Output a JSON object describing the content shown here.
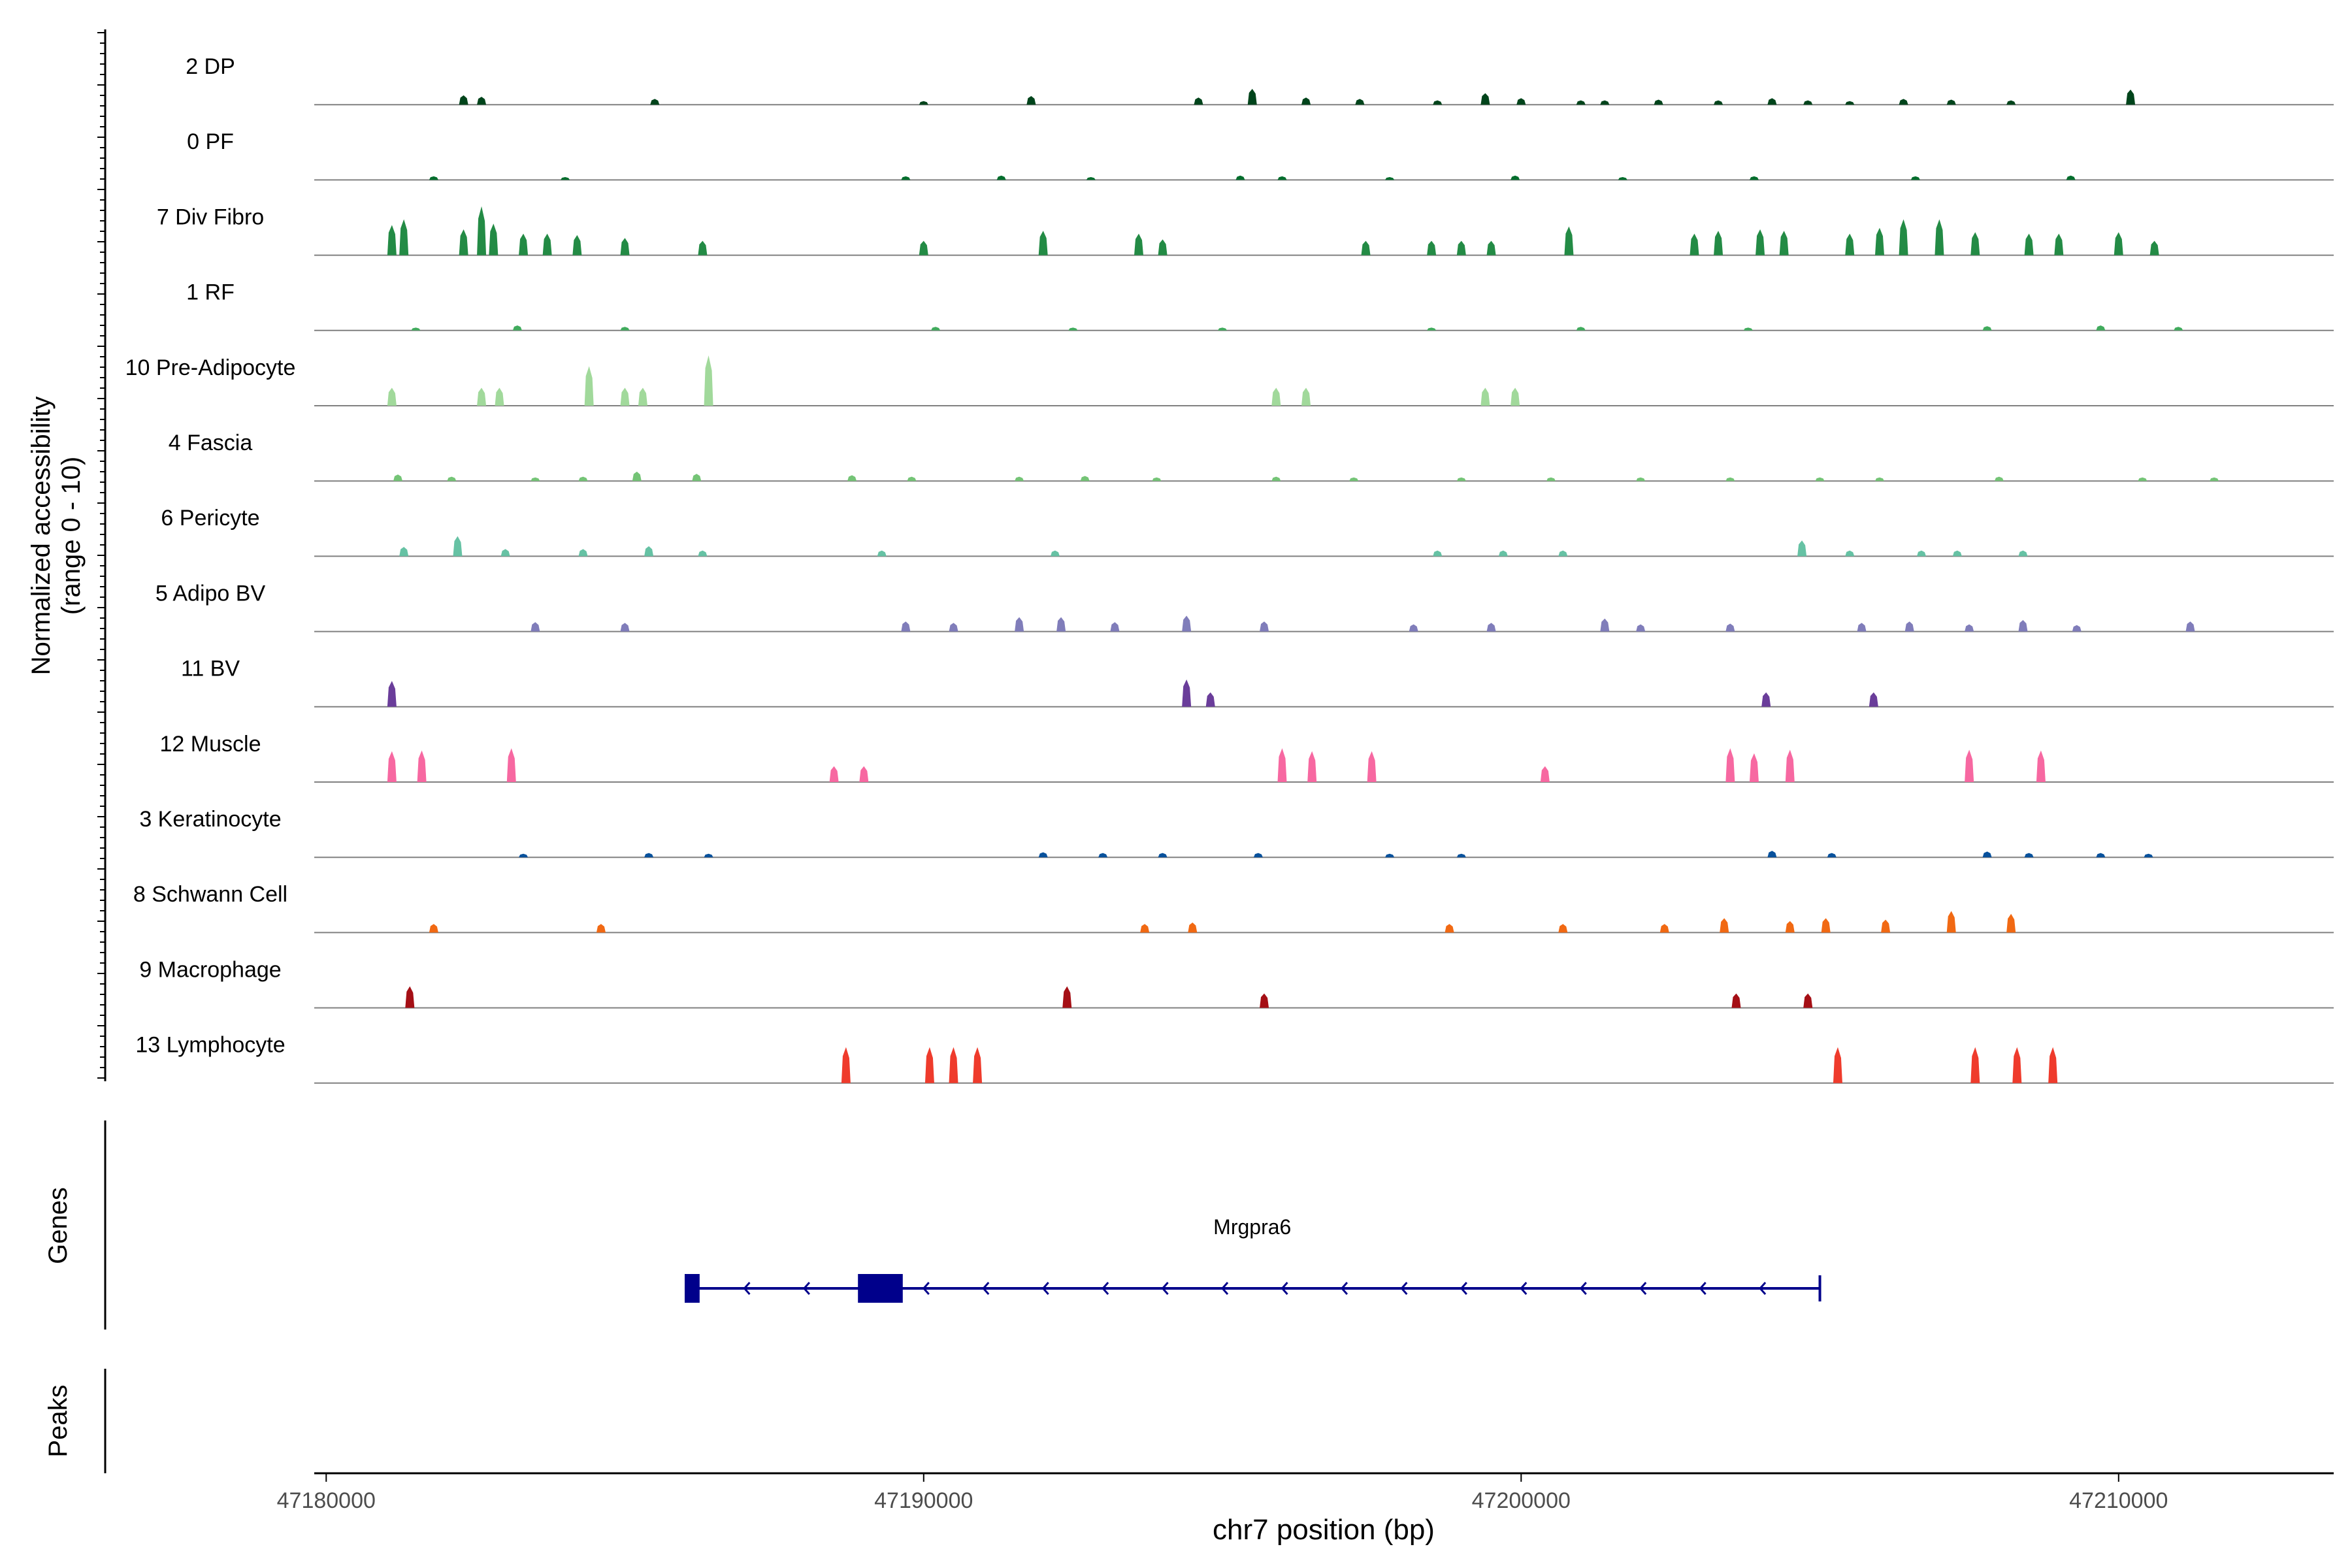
{
  "chart_data": {
    "type": "area",
    "title": "",
    "ylabel_line1": "Normalized accessibility",
    "ylabel_line2": "(range 0 - 10)",
    "xlabel": "chr7 position (bp)",
    "xlim": [
      47179800,
      47213600
    ],
    "ylim": [
      0,
      10
    ],
    "x_ticks": [
      47180000,
      47190000,
      47200000,
      47210000
    ],
    "tracks": [
      {
        "name": "2 DP",
        "color": "#00441b",
        "peaks": [
          [
            47182300,
            1.3
          ],
          [
            47182600,
            1.1
          ],
          [
            47185500,
            0.8
          ],
          [
            47190000,
            0.5
          ],
          [
            47191800,
            1.2
          ],
          [
            47194600,
            1.0
          ],
          [
            47195500,
            2.2
          ],
          [
            47196400,
            1.0
          ],
          [
            47197300,
            0.8
          ],
          [
            47198600,
            0.6
          ],
          [
            47199400,
            1.6
          ],
          [
            47200000,
            0.9
          ],
          [
            47201000,
            0.6
          ],
          [
            47201400,
            0.6
          ],
          [
            47202300,
            0.7
          ],
          [
            47203300,
            0.6
          ],
          [
            47204200,
            0.9
          ],
          [
            47204800,
            0.6
          ],
          [
            47205500,
            0.5
          ],
          [
            47206400,
            0.8
          ],
          [
            47207200,
            0.7
          ],
          [
            47208200,
            0.6
          ],
          [
            47210200,
            2.1
          ]
        ]
      },
      {
        "name": "0 PF",
        "color": "#006d2c",
        "peaks": [
          [
            47181800,
            0.5
          ],
          [
            47184000,
            0.4
          ],
          [
            47189700,
            0.5
          ],
          [
            47191300,
            0.6
          ],
          [
            47192800,
            0.4
          ],
          [
            47195300,
            0.6
          ],
          [
            47196000,
            0.5
          ],
          [
            47197800,
            0.4
          ],
          [
            47199900,
            0.6
          ],
          [
            47201700,
            0.4
          ],
          [
            47203900,
            0.5
          ],
          [
            47206600,
            0.5
          ],
          [
            47209200,
            0.6
          ]
        ]
      },
      {
        "name": "7 Div Fibro",
        "color": "#238b45",
        "peaks": [
          [
            47181100,
            4.2
          ],
          [
            47181300,
            5.0
          ],
          [
            47182300,
            3.6
          ],
          [
            47182600,
            6.8
          ],
          [
            47182800,
            4.4
          ],
          [
            47183300,
            3.0
          ],
          [
            47183700,
            3.0
          ],
          [
            47184200,
            2.8
          ],
          [
            47185000,
            2.4
          ],
          [
            47186300,
            2.0
          ],
          [
            47190000,
            2.0
          ],
          [
            47192000,
            3.4
          ],
          [
            47193600,
            3.0
          ],
          [
            47194000,
            2.2
          ],
          [
            47197400,
            2.0
          ],
          [
            47198500,
            2.0
          ],
          [
            47199000,
            2.0
          ],
          [
            47199500,
            2.0
          ],
          [
            47200800,
            4.0
          ],
          [
            47202900,
            3.0
          ],
          [
            47203300,
            3.4
          ],
          [
            47204000,
            3.6
          ],
          [
            47204400,
            3.4
          ],
          [
            47205500,
            3.0
          ],
          [
            47206000,
            3.8
          ],
          [
            47206400,
            5.0
          ],
          [
            47207000,
            5.0
          ],
          [
            47207600,
            3.2
          ],
          [
            47208500,
            3.0
          ],
          [
            47209000,
            3.0
          ],
          [
            47210000,
            3.2
          ],
          [
            47210600,
            2.0
          ]
        ]
      },
      {
        "name": "1 RF",
        "color": "#41ab5d",
        "peaks": [
          [
            47181500,
            0.4
          ],
          [
            47183200,
            0.7
          ],
          [
            47185000,
            0.5
          ],
          [
            47190200,
            0.5
          ],
          [
            47192500,
            0.4
          ],
          [
            47195000,
            0.4
          ],
          [
            47198500,
            0.4
          ],
          [
            47201000,
            0.5
          ],
          [
            47203800,
            0.4
          ],
          [
            47207800,
            0.6
          ],
          [
            47209700,
            0.7
          ],
          [
            47211000,
            0.5
          ]
        ]
      },
      {
        "name": "10 Pre-Adipocyte",
        "color": "#a1d99b",
        "peaks": [
          [
            47181100,
            2.5
          ],
          [
            47182600,
            2.5
          ],
          [
            47182900,
            2.5
          ],
          [
            47184400,
            5.5
          ],
          [
            47185000,
            2.5
          ],
          [
            47185300,
            2.5
          ],
          [
            47186400,
            7.0
          ],
          [
            47195900,
            2.5
          ],
          [
            47196400,
            2.5
          ],
          [
            47199400,
            2.5
          ],
          [
            47199900,
            2.5
          ]
        ]
      },
      {
        "name": "4 Fascia",
        "color": "#74c476",
        "peaks": [
          [
            47181200,
            0.9
          ],
          [
            47182100,
            0.6
          ],
          [
            47183500,
            0.5
          ],
          [
            47184300,
            0.6
          ],
          [
            47185200,
            1.3
          ],
          [
            47186200,
            1.0
          ],
          [
            47188800,
            0.8
          ],
          [
            47189800,
            0.6
          ],
          [
            47191600,
            0.6
          ],
          [
            47192700,
            0.7
          ],
          [
            47193900,
            0.5
          ],
          [
            47195900,
            0.6
          ],
          [
            47197200,
            0.5
          ],
          [
            47199000,
            0.5
          ],
          [
            47200500,
            0.5
          ],
          [
            47202000,
            0.5
          ],
          [
            47203500,
            0.5
          ],
          [
            47205000,
            0.5
          ],
          [
            47206000,
            0.5
          ],
          [
            47208000,
            0.6
          ],
          [
            47210400,
            0.5
          ],
          [
            47211600,
            0.5
          ]
        ]
      },
      {
        "name": "6 Pericyte",
        "color": "#66c2a4",
        "peaks": [
          [
            47181300,
            1.3
          ],
          [
            47182200,
            2.8
          ],
          [
            47183000,
            1.0
          ],
          [
            47184300,
            1.0
          ],
          [
            47185400,
            1.4
          ],
          [
            47186300,
            0.8
          ],
          [
            47189300,
            0.8
          ],
          [
            47192200,
            0.8
          ],
          [
            47198600,
            0.8
          ],
          [
            47199700,
            0.8
          ],
          [
            47200700,
            0.8
          ],
          [
            47204700,
            2.2
          ],
          [
            47205500,
            0.8
          ],
          [
            47206700,
            0.8
          ],
          [
            47207300,
            0.8
          ],
          [
            47208400,
            0.8
          ]
        ]
      },
      {
        "name": "5 Adipo BV",
        "color": "#807dba",
        "peaks": [
          [
            47183500,
            1.3
          ],
          [
            47185000,
            1.2
          ],
          [
            47189700,
            1.4
          ],
          [
            47190500,
            1.2
          ],
          [
            47191600,
            2.0
          ],
          [
            47192300,
            2.0
          ],
          [
            47193200,
            1.3
          ],
          [
            47194400,
            2.2
          ],
          [
            47195700,
            1.4
          ],
          [
            47198200,
            1.0
          ],
          [
            47199500,
            1.2
          ],
          [
            47201400,
            1.8
          ],
          [
            47202000,
            1.0
          ],
          [
            47203500,
            1.1
          ],
          [
            47205700,
            1.2
          ],
          [
            47206500,
            1.4
          ],
          [
            47207500,
            1.0
          ],
          [
            47208400,
            1.6
          ],
          [
            47209300,
            0.9
          ],
          [
            47211200,
            1.4
          ]
        ]
      },
      {
        "name": "11 BV",
        "color": "#6a3d9a",
        "peaks": [
          [
            47181100,
            3.6
          ],
          [
            47194400,
            3.8
          ],
          [
            47194800,
            2.0
          ],
          [
            47204100,
            2.0
          ],
          [
            47205900,
            2.0
          ]
        ]
      },
      {
        "name": "12 Muscle",
        "color": "#f768a1",
        "peaks": [
          [
            47181100,
            4.3
          ],
          [
            47181600,
            4.4
          ],
          [
            47183100,
            4.7
          ],
          [
            47188500,
            2.2
          ],
          [
            47189000,
            2.2
          ],
          [
            47196000,
            4.7
          ],
          [
            47196500,
            4.3
          ],
          [
            47197500,
            4.3
          ],
          [
            47200400,
            2.2
          ],
          [
            47203500,
            4.7
          ],
          [
            47203900,
            4.0
          ],
          [
            47204500,
            4.5
          ],
          [
            47207500,
            4.5
          ],
          [
            47208700,
            4.4
          ]
        ]
      },
      {
        "name": "3 Keratinocyte",
        "color": "#08519c",
        "peaks": [
          [
            47183300,
            0.5
          ],
          [
            47185400,
            0.6
          ],
          [
            47186400,
            0.5
          ],
          [
            47192000,
            0.7
          ],
          [
            47193000,
            0.6
          ],
          [
            47194000,
            0.6
          ],
          [
            47195600,
            0.6
          ],
          [
            47197800,
            0.5
          ],
          [
            47199000,
            0.5
          ],
          [
            47204200,
            0.9
          ],
          [
            47205200,
            0.6
          ],
          [
            47207800,
            0.8
          ],
          [
            47208500,
            0.6
          ],
          [
            47209700,
            0.6
          ],
          [
            47210500,
            0.5
          ]
        ]
      },
      {
        "name": "8 Schwann Cell",
        "color": "#f16913",
        "peaks": [
          [
            47181800,
            1.2
          ],
          [
            47184600,
            1.2
          ],
          [
            47193700,
            1.2
          ],
          [
            47194500,
            1.4
          ],
          [
            47198800,
            1.2
          ],
          [
            47200700,
            1.2
          ],
          [
            47202400,
            1.2
          ],
          [
            47203400,
            2.0
          ],
          [
            47204500,
            1.6
          ],
          [
            47205100,
            2.0
          ],
          [
            47206100,
            1.8
          ],
          [
            47207200,
            3.0
          ],
          [
            47208200,
            2.6
          ]
        ]
      },
      {
        "name": "9 Macrophage",
        "color": "#a50f15",
        "peaks": [
          [
            47181400,
            3.0
          ],
          [
            47192400,
            3.0
          ],
          [
            47195700,
            2.0
          ],
          [
            47203600,
            2.0
          ],
          [
            47204800,
            2.0
          ]
        ]
      },
      {
        "name": "13 Lymphocyte",
        "color": "#ef3b2c",
        "peaks": [
          [
            47188700,
            5.0
          ],
          [
            47190100,
            5.0
          ],
          [
            47190500,
            5.0
          ],
          [
            47190900,
            5.0
          ],
          [
            47205300,
            5.0
          ],
          [
            47207600,
            5.0
          ],
          [
            47208300,
            5.0
          ],
          [
            47208900,
            5.0
          ]
        ]
      }
    ],
    "genes": {
      "label": "Genes",
      "color": "#00008b",
      "name": "Mrgpra6",
      "strand": "-",
      "start": 47186000,
      "end": 47205000,
      "exons": [
        [
          47186000,
          47186250
        ],
        [
          47188900,
          47189650
        ]
      ]
    },
    "peaks_track": {
      "label": "Peaks",
      "regions": []
    }
  }
}
